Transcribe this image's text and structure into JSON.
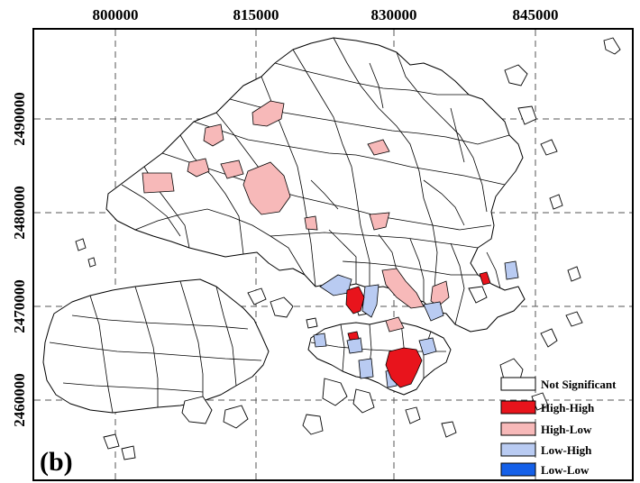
{
  "panel_label": "(b)",
  "x_ticks": [
    "800000",
    "815000",
    "830000",
    "845000"
  ],
  "y_ticks": [
    "2490000",
    "2480000",
    "2470000",
    "2460000"
  ],
  "legend": [
    {
      "key": "ns",
      "label": "Not Significant",
      "color": "#ffffff"
    },
    {
      "key": "hh",
      "label": "High-High",
      "color": "#e8141c"
    },
    {
      "key": "hl",
      "label": "High-Low",
      "color": "#f7b9b9"
    },
    {
      "key": "lh",
      "label": "Low-High",
      "color": "#b9cbf2"
    },
    {
      "key": "ll",
      "label": "Low-Low",
      "color": "#1560e8"
    }
  ],
  "colors": {
    "high_high": "#e8141c",
    "high_low": "#f7b9b9",
    "low_high": "#b9cbf2",
    "low_low": "#1560e8",
    "not_significant": "#ffffff"
  }
}
